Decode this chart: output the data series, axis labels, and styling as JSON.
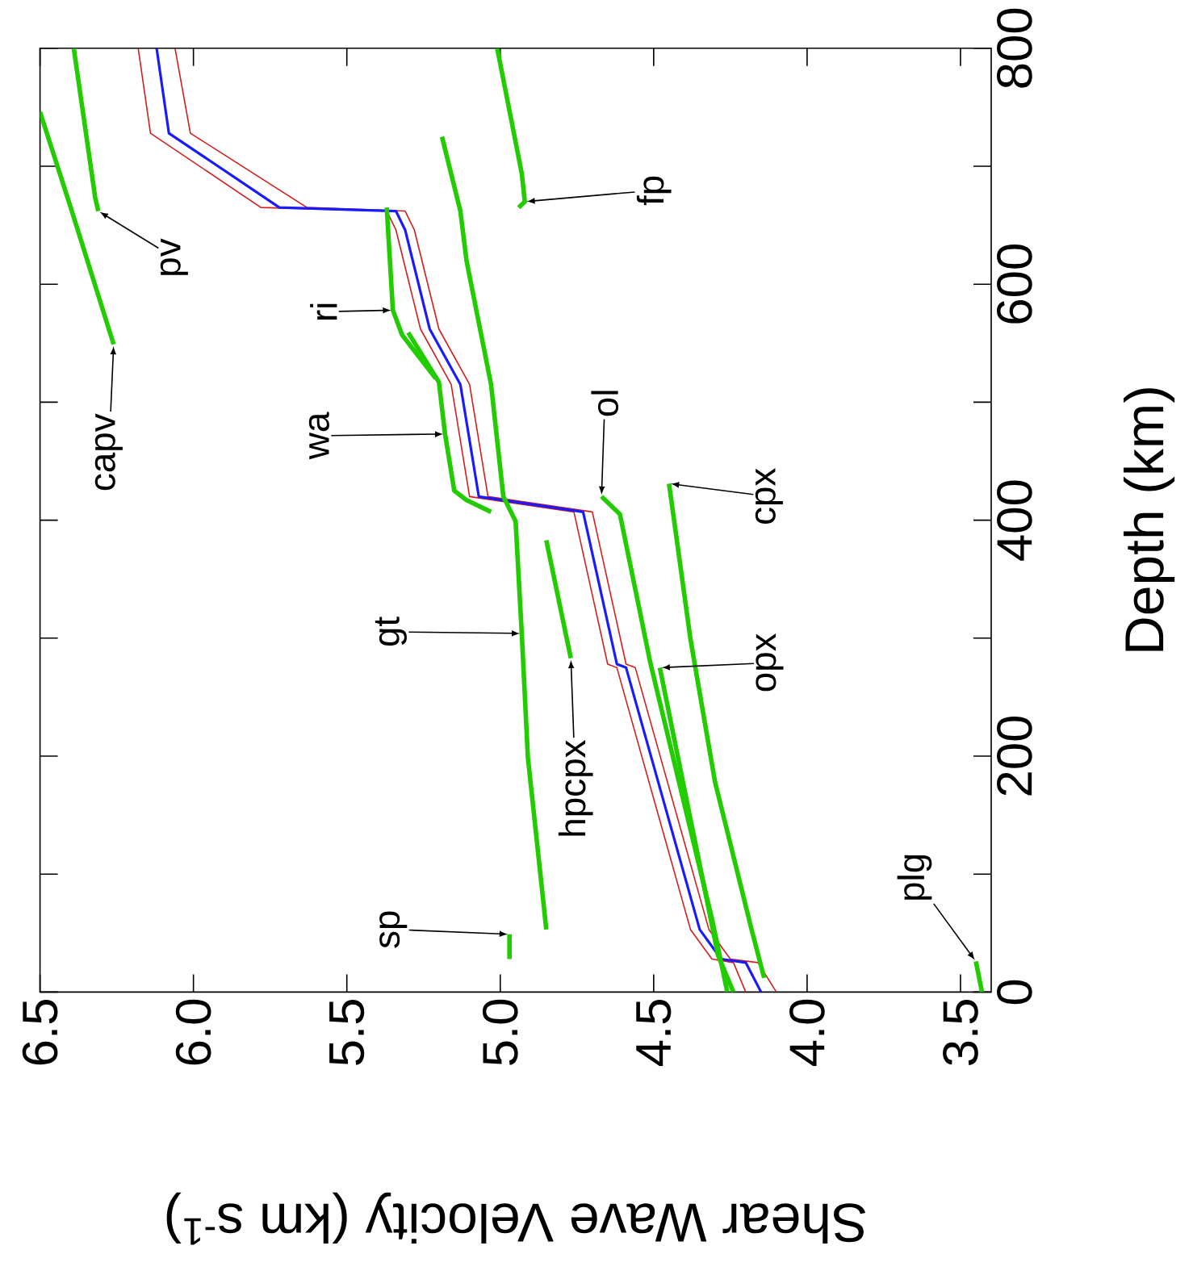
{
  "chart_data": {
    "type": "line",
    "xlabel": "Shear Wave Velocity (km s$^{-1}$)",
    "ylabel": "Depth (km)",
    "xlim": [
      6.5,
      3.4
    ],
    "ylim": [
      0,
      800
    ],
    "xticks": [
      {
        "value": 6.5,
        "label": "6.5"
      },
      {
        "value": 6,
        "label": "6.0"
      },
      {
        "value": 5.5,
        "label": "5.5"
      },
      {
        "value": 5,
        "label": "5.0"
      },
      {
        "value": 4.5,
        "label": "4.5"
      },
      {
        "value": 4,
        "label": "4.0"
      },
      {
        "value": 3.5,
        "label": "3.5"
      }
    ],
    "yticks": [
      {
        "value": 0,
        "label": "0"
      },
      {
        "value": 100,
        "label": null
      },
      {
        "value": 200,
        "label": "200"
      },
      {
        "value": 300,
        "label": null
      },
      {
        "value": 400,
        "label": "400"
      },
      {
        "value": 500,
        "label": null
      },
      {
        "value": 600,
        "label": "600"
      },
      {
        "value": 700,
        "label": null
      },
      {
        "value": 800,
        "label": "800"
      }
    ],
    "marker": "none",
    "series": [
      {
        "color": "#1a1aff",
        "values": [
          0,
          25,
          28,
          53,
          275,
          278,
          407,
          420,
          515,
          562,
          646,
          662,
          665,
          728,
          800
        ],
        "x": [
          4.15,
          4.2,
          4.28,
          4.35,
          4.59,
          4.62,
          4.73,
          5.07,
          5.13,
          5.23,
          5.31,
          5.34,
          5.72,
          6.08,
          6.12
        ]
      },
      {
        "color": "#d21e1e",
        "values": [
          0,
          25,
          28,
          53,
          275,
          278,
          407,
          420,
          515,
          562,
          646,
          662,
          665,
          728,
          800
        ],
        "x": [
          4.1,
          4.16,
          4.25,
          4.32,
          4.56,
          4.59,
          4.7,
          5.04,
          5.1,
          5.2,
          5.28,
          5.31,
          5.63,
          6.01,
          6.06
        ]
      },
      {
        "color": "#d21e1e",
        "values": [
          0,
          25,
          28,
          53,
          275,
          278,
          407,
          420,
          515,
          562,
          646,
          662,
          665,
          728,
          800
        ],
        "x": [
          4.2,
          4.24,
          4.31,
          4.38,
          4.62,
          4.65,
          4.76,
          5.1,
          5.16,
          5.26,
          5.34,
          5.37,
          5.78,
          6.14,
          6.18
        ]
      },
      {
        "name": "capv",
        "color": "#22cc00",
        "values": [
          549,
          665,
          746
        ],
        "x": [
          6.26,
          6.4,
          6.5
        ]
      },
      {
        "name": "pv",
        "color": "#22cc00",
        "values": [
          662,
          673,
          800
        ],
        "x": [
          6.31,
          6.32,
          6.39
        ]
      },
      {
        "name": "fp",
        "color": "#22cc00",
        "values": [
          665,
          670,
          694,
          800
        ],
        "x": [
          4.94,
          4.92,
          4.93,
          5.01
        ]
      },
      {
        "name": "gt",
        "color": "#22cc00",
        "values": [
          53,
          199,
          304,
          399,
          420,
          515,
          620,
          662,
          725
        ],
        "x": [
          4.85,
          4.91,
          4.93,
          4.95,
          4.99,
          5.03,
          5.11,
          5.13,
          5.19
        ]
      },
      {
        "name": "hpcpx",
        "color": "#22cc00",
        "values": [
          283,
          383
        ],
        "x": [
          4.77,
          4.85
        ]
      },
      {
        "name": "sp",
        "color": "#22cc00",
        "values": [
          28,
          49
        ],
        "x": [
          4.97,
          4.97
        ]
      },
      {
        "name": "wa",
        "color": "#22cc00",
        "values": [
          407,
          417,
          425,
          473,
          517,
          559
        ],
        "x": [
          5.03,
          5.11,
          5.15,
          5.18,
          5.2,
          5.3
        ]
      },
      {
        "name": "ri",
        "color": "#22cc00",
        "values": [
          520,
          557,
          578,
          665
        ],
        "x": [
          5.21,
          5.32,
          5.35,
          5.37
        ]
      },
      {
        "name": "ol",
        "color": "#22cc00",
        "values": [
          0,
          62,
          278,
          405,
          420
        ],
        "x": [
          4.26,
          4.31,
          4.51,
          4.61,
          4.67
        ]
      },
      {
        "name": "opx",
        "color": "#22cc00",
        "values": [
          0,
          31,
          275
        ],
        "x": [
          4.24,
          4.29,
          4.48
        ]
      },
      {
        "name": "cpx",
        "color": "#22cc00",
        "values": [
          12,
          52,
          178,
          299,
          431
        ],
        "x": [
          4.14,
          4.18,
          4.3,
          4.38,
          4.45
        ]
      },
      {
        "name": "plg",
        "color": "#22cc00",
        "values": [
          0,
          26
        ],
        "x": [
          3.43,
          3.45
        ]
      }
    ]
  }
}
